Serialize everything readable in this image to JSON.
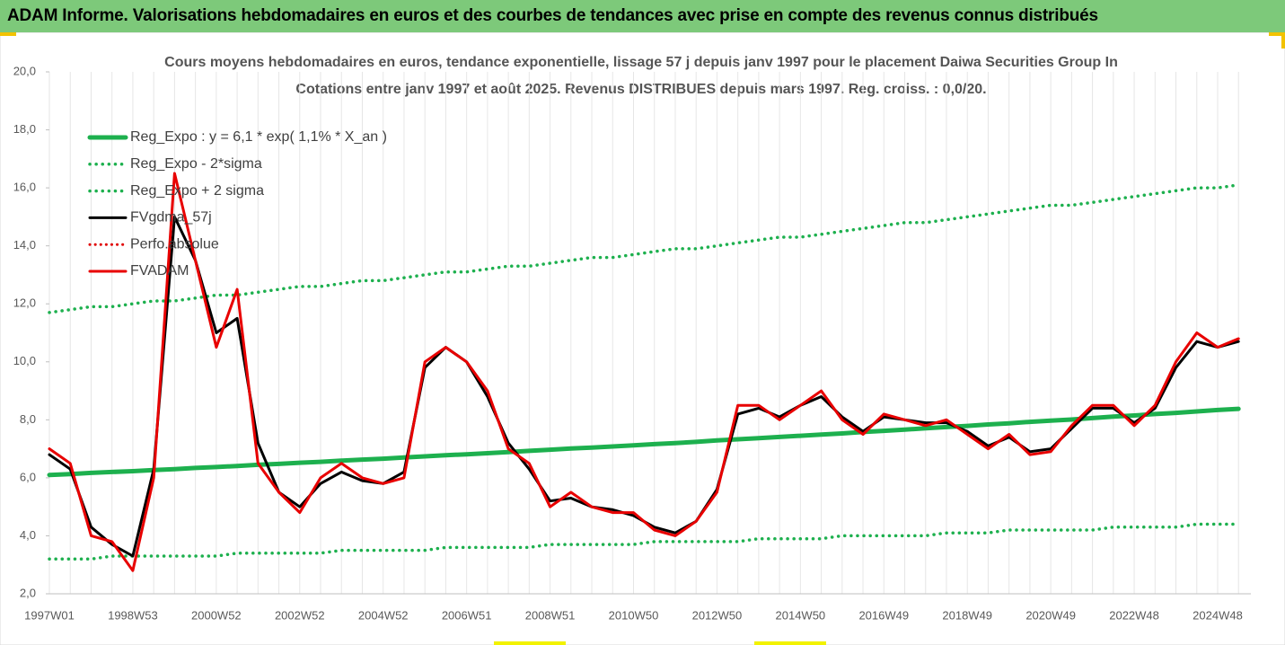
{
  "header": {
    "title": "ADAM Informe. Valorisations hebdomadaires en euros et des courbes de tendances avec prise en compte des revenus connus distribués"
  },
  "chart_data": {
    "type": "line",
    "title": "Cours moyens hebdomadaires en euros, tendance exponentielle, lissage 57 j depuis janv 1997 pour le placement Daiwa Securities Group In",
    "subtitle": "Cotations entre janv 1997 et août 2025.  Revenus DISTRIBUES depuis mars 1997. Reg. croiss. : 0,0/20.",
    "categories": [
      "1997W01",
      null,
      null,
      null,
      "1998W53",
      null,
      null,
      null,
      "2000W52",
      null,
      null,
      null,
      "2002W52",
      null,
      null,
      null,
      "2004W52",
      null,
      null,
      null,
      "2006W51",
      null,
      null,
      null,
      "2008W51",
      null,
      null,
      null,
      "2010W50",
      null,
      null,
      null,
      "2012W50",
      null,
      null,
      null,
      "2014W50",
      null,
      null,
      null,
      "2016W49",
      null,
      null,
      null,
      "2018W49",
      null,
      null,
      null,
      "2020W49",
      null,
      null,
      null,
      "2022W48",
      null,
      null,
      null,
      "2024W48",
      null
    ],
    "ylim": [
      2,
      20
    ],
    "yticks": [
      {
        "value": 2,
        "label": "2,0"
      },
      {
        "value": 4,
        "label": "4,0"
      },
      {
        "value": 6,
        "label": "6,0"
      },
      {
        "value": 8,
        "label": "8,0"
      },
      {
        "value": 10,
        "label": "10,0"
      },
      {
        "value": 12,
        "label": "12,0"
      },
      {
        "value": 14,
        "label": "14,0"
      },
      {
        "value": 16,
        "label": "16,0"
      },
      {
        "value": 18,
        "label": "18,0"
      },
      {
        "value": 20,
        "label": "20,0"
      }
    ],
    "grid": true,
    "legend": "top-left",
    "series": [
      {
        "name": "Reg_Expo : y = 6,1 * exp( 1,1% *  X_an )",
        "color": "#1db04e",
        "style": "solid",
        "width": 5,
        "values": [
          6.1,
          6.13,
          6.17,
          6.2,
          6.23,
          6.27,
          6.3,
          6.34,
          6.37,
          6.41,
          6.45,
          6.48,
          6.52,
          6.55,
          6.59,
          6.63,
          6.66,
          6.7,
          6.74,
          6.78,
          6.81,
          6.85,
          6.89,
          6.93,
          6.97,
          7.01,
          7.04,
          7.08,
          7.12,
          7.16,
          7.2,
          7.24,
          7.29,
          7.33,
          7.37,
          7.41,
          7.45,
          7.49,
          7.53,
          7.58,
          7.62,
          7.66,
          7.71,
          7.75,
          7.79,
          7.84,
          7.88,
          7.93,
          7.97,
          8.01,
          8.06,
          8.11,
          8.15,
          8.2,
          8.24,
          8.29,
          8.34,
          8.38
        ]
      },
      {
        "name": "Reg_Expo - 2*sigma",
        "color": "#1db04e",
        "style": "dotted",
        "width": 3.5,
        "values": [
          3.2,
          3.2,
          3.2,
          3.3,
          3.3,
          3.3,
          3.3,
          3.3,
          3.3,
          3.4,
          3.4,
          3.4,
          3.4,
          3.4,
          3.5,
          3.5,
          3.5,
          3.5,
          3.5,
          3.6,
          3.6,
          3.6,
          3.6,
          3.6,
          3.7,
          3.7,
          3.7,
          3.7,
          3.7,
          3.8,
          3.8,
          3.8,
          3.8,
          3.8,
          3.9,
          3.9,
          3.9,
          3.9,
          4.0,
          4.0,
          4.0,
          4.0,
          4.0,
          4.1,
          4.1,
          4.1,
          4.2,
          4.2,
          4.2,
          4.2,
          4.2,
          4.3,
          4.3,
          4.3,
          4.3,
          4.4,
          4.4,
          4.4
        ]
      },
      {
        "name": "Reg_Expo + 2 sigma",
        "color": "#1db04e",
        "style": "dotted",
        "width": 3.5,
        "values": [
          11.7,
          11.8,
          11.9,
          11.9,
          12.0,
          12.1,
          12.1,
          12.2,
          12.3,
          12.3,
          12.4,
          12.5,
          12.6,
          12.6,
          12.7,
          12.8,
          12.8,
          12.9,
          13.0,
          13.1,
          13.1,
          13.2,
          13.3,
          13.3,
          13.4,
          13.5,
          13.6,
          13.6,
          13.7,
          13.8,
          13.9,
          13.9,
          14.0,
          14.1,
          14.2,
          14.3,
          14.3,
          14.4,
          14.5,
          14.6,
          14.7,
          14.8,
          14.8,
          14.9,
          15.0,
          15.1,
          15.2,
          15.3,
          15.4,
          15.4,
          15.5,
          15.6,
          15.7,
          15.8,
          15.9,
          16.0,
          16.0,
          16.1
        ]
      },
      {
        "name": "FVgdma_57j",
        "color": "#000000",
        "style": "solid",
        "width": 3,
        "values": [
          6.8,
          6.3,
          4.3,
          3.7,
          3.3,
          6.3,
          15.0,
          13.5,
          11.0,
          11.5,
          7.2,
          5.5,
          5.0,
          5.8,
          6.2,
          5.9,
          5.8,
          6.2,
          9.8,
          10.5,
          10.0,
          8.8,
          7.2,
          6.3,
          5.2,
          5.3,
          5.0,
          4.9,
          4.7,
          4.3,
          4.1,
          4.5,
          5.6,
          8.2,
          8.4,
          8.1,
          8.5,
          8.8,
          8.1,
          7.6,
          8.1,
          8.0,
          7.9,
          7.9,
          7.6,
          7.1,
          7.4,
          6.9,
          7.0,
          7.7,
          8.4,
          8.4,
          7.9,
          8.4,
          9.8,
          10.7,
          10.5,
          10.7
        ]
      },
      {
        "name": "Perfo.absolue",
        "color": "#e00000",
        "style": "dotted",
        "width": 3,
        "values": [
          null,
          null,
          null,
          null,
          null,
          null,
          null,
          null,
          null,
          null,
          null,
          null,
          null,
          null,
          null,
          null,
          null,
          null,
          null,
          null,
          null,
          null,
          null,
          null,
          null,
          null,
          null,
          null,
          null,
          null,
          null,
          null,
          null,
          null,
          null,
          null,
          null,
          null,
          null,
          null,
          null,
          null,
          null,
          null,
          null,
          null,
          null,
          null,
          null,
          null,
          null,
          null,
          null,
          null,
          null,
          null,
          null,
          null
        ]
      },
      {
        "name": "FVADAM",
        "color": "#e80000",
        "style": "solid",
        "width": 3,
        "values": [
          7.0,
          6.5,
          4.0,
          3.8,
          2.8,
          6.0,
          16.5,
          13.5,
          10.5,
          12.5,
          6.5,
          5.5,
          4.8,
          6.0,
          6.5,
          6.0,
          5.8,
          6.0,
          10.0,
          10.5,
          10.0,
          9.0,
          7.0,
          6.5,
          5.0,
          5.5,
          5.0,
          4.8,
          4.8,
          4.2,
          4.0,
          4.5,
          5.5,
          8.5,
          8.5,
          8.0,
          8.5,
          9.0,
          8.0,
          7.5,
          8.2,
          8.0,
          7.8,
          8.0,
          7.5,
          7.0,
          7.5,
          6.8,
          6.9,
          7.8,
          8.5,
          8.5,
          7.8,
          8.5,
          10.0,
          11.0,
          10.5,
          10.8
        ]
      }
    ]
  }
}
